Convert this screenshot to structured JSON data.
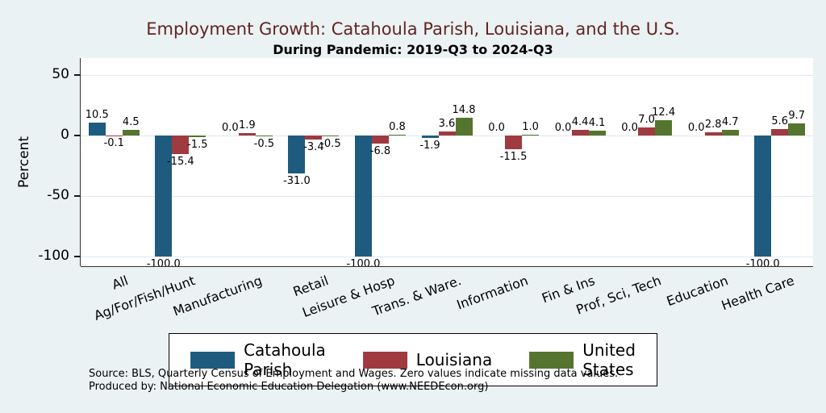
{
  "chart_data": {
    "type": "bar",
    "title": "Employment Growth: Catahoula Parish, Louisiana, and the U.S.",
    "subtitle": "During Pandemic: 2019-Q3 to 2024-Q3",
    "ylabel": "Percent",
    "ylim": [
      -108,
      64
    ],
    "yticks": [
      50,
      0,
      -50,
      -100
    ],
    "grid": true,
    "legend_position": "bottom",
    "categories": [
      "All",
      "Ag/For/Fish/Hunt",
      "Manufacturing",
      "Retail",
      "Leisure & Hosp",
      "Trans. & Ware.",
      "Information",
      "Fin & Ins",
      "Prof, Sci, Tech",
      "Education",
      "Health Care"
    ],
    "series": [
      {
        "name": "Catahoula Parish",
        "color": "#1e5b7e",
        "values": [
          10.5,
          -100.0,
          0.0,
          -31.0,
          -100.0,
          -1.9,
          0.0,
          0.0,
          0.0,
          0.0,
          -100.0
        ]
      },
      {
        "name": "Louisiana",
        "color": "#9f3a40",
        "values": [
          -0.1,
          -15.4,
          1.9,
          -3.4,
          -6.8,
          3.6,
          -11.5,
          4.4,
          7.0,
          2.8,
          5.6
        ]
      },
      {
        "name": "United States",
        "color": "#55752f",
        "values": [
          4.5,
          -1.5,
          -0.5,
          -0.5,
          0.8,
          14.8,
          1.0,
          4.1,
          12.4,
          4.7,
          9.7
        ]
      }
    ],
    "colors": {
      "background": "#eaf2f3",
      "plot_background": "#ffffff",
      "gridline": "#dfeaee",
      "title": "#632423"
    }
  },
  "footer": {
    "source": "Source: BLS, Quarterly Census of Employment and Wages. Zero values indicate missing data values.",
    "produced_by": "Produced by: National Economic Education Delegation (www.NEEDEcon.org)"
  }
}
